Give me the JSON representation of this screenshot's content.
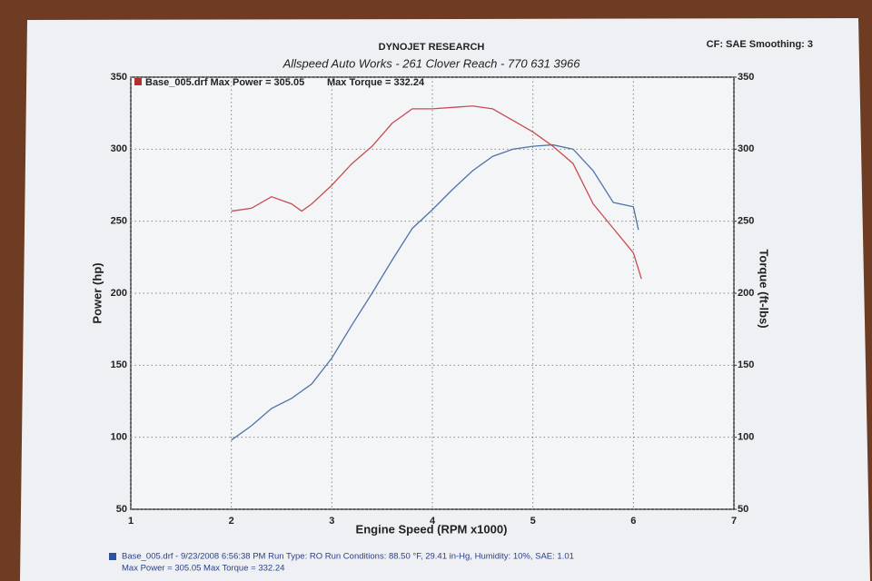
{
  "chart_data": {
    "type": "line",
    "title": "DYNOJET RESEARCH",
    "subtitle": "Allspeed Auto Works - 261 Clover Reach - 770 631 3966",
    "corner_note": "CF: SAE  Smoothing: 3",
    "plot_header": [
      "Base_005.drf Max Power = 305.05",
      "Max Torque = 332.24"
    ],
    "footer": [
      "Base_005.drf - 9/23/2008 6:56:38 PM  Run Type: RO  Run Conditions: 88.50 °F, 29.41 in-Hg,  Humidity: 10%, SAE: 1.01",
      "Max Power = 305.05  Max Torque = 332.24"
    ],
    "xlabel": "Engine Speed (RPM x1000)",
    "ylabel": "Power (hp)",
    "y2label": "Torque (ft-lbs)",
    "xlim": [
      1,
      7
    ],
    "xticks": [
      1,
      2,
      3,
      4,
      5,
      6,
      7
    ],
    "ylim": [
      50,
      350
    ],
    "yticks": [
      50,
      100,
      150,
      200,
      250,
      300,
      350
    ],
    "y2lim": [
      50,
      350
    ],
    "y2ticks": [
      50,
      100,
      150,
      200,
      250,
      300,
      350
    ],
    "grid": true,
    "series": [
      {
        "color": "#4f73a8",
        "x": [
          2.0,
          2.2,
          2.4,
          2.6,
          2.8,
          3.0,
          3.2,
          3.4,
          3.6,
          3.8,
          4.0,
          4.2,
          4.4,
          4.6,
          4.8,
          5.0,
          5.2,
          5.4,
          5.6,
          5.8,
          6.0,
          6.05
        ],
        "values": [
          98,
          108,
          120,
          127,
          137,
          155,
          178,
          200,
          223,
          245,
          258,
          272,
          285,
          295,
          300,
          302,
          303,
          300,
          285,
          263,
          260,
          244
        ]
      },
      {
        "color": "#c84c55",
        "axis": "y2",
        "x": [
          2.0,
          2.2,
          2.4,
          2.6,
          2.7,
          2.8,
          3.0,
          3.2,
          3.4,
          3.6,
          3.8,
          4.0,
          4.2,
          4.4,
          4.6,
          4.8,
          5.0,
          5.2,
          5.4,
          5.6,
          5.8,
          6.0,
          6.08
        ],
        "values": [
          257,
          259,
          267,
          262,
          257,
          262,
          275,
          290,
          302,
          318,
          328,
          328,
          329,
          330,
          328,
          320,
          312,
          302,
          290,
          262,
          245,
          228,
          210
        ]
      }
    ]
  }
}
